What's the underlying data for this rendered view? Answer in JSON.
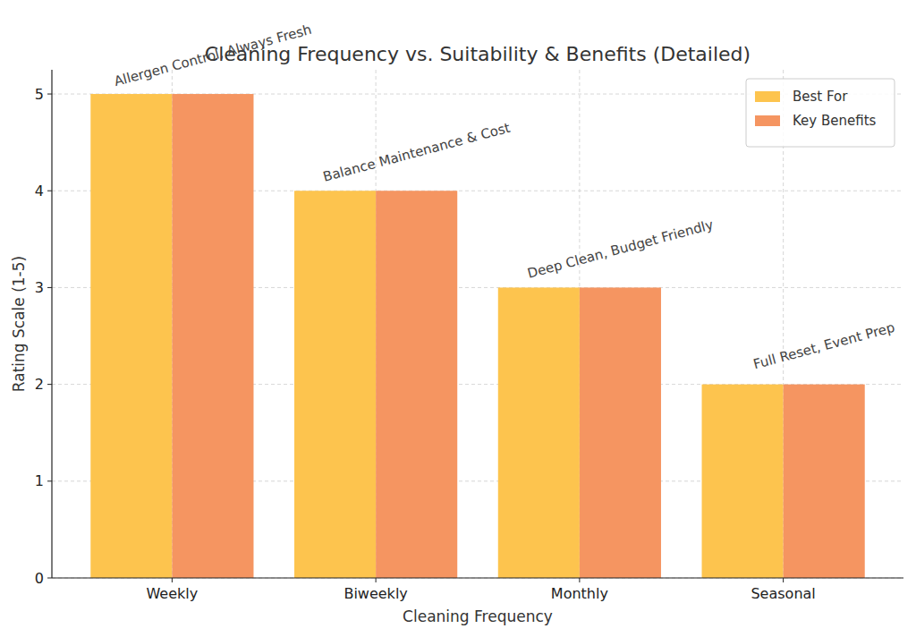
{
  "chart_data": {
    "type": "bar",
    "title": "Cleaning Frequency vs. Suitability & Benefits (Detailed)",
    "x_label": "Cleaning Frequency",
    "y_label": "Rating Scale (1-5)",
    "categories": [
      "Weekly",
      "Biweekly",
      "Monthly",
      "Seasonal"
    ],
    "series": [
      {
        "name": "Best For",
        "color": "#fdc44e",
        "values": [
          5,
          4,
          3,
          2
        ]
      },
      {
        "name": "Key Benefits",
        "color": "#f59561",
        "values": [
          5,
          4,
          3,
          2
        ]
      }
    ],
    "annotations": [
      "Allergen Control, Always Fresh",
      "Balance Maintenance & Cost",
      "Deep Clean, Budget Friendly",
      "Full Reset, Event Prep"
    ],
    "ylim": [
      0,
      5.25
    ],
    "yticks": [
      0,
      1,
      2,
      3,
      4,
      5
    ],
    "grid": true,
    "legend": "upper right"
  }
}
